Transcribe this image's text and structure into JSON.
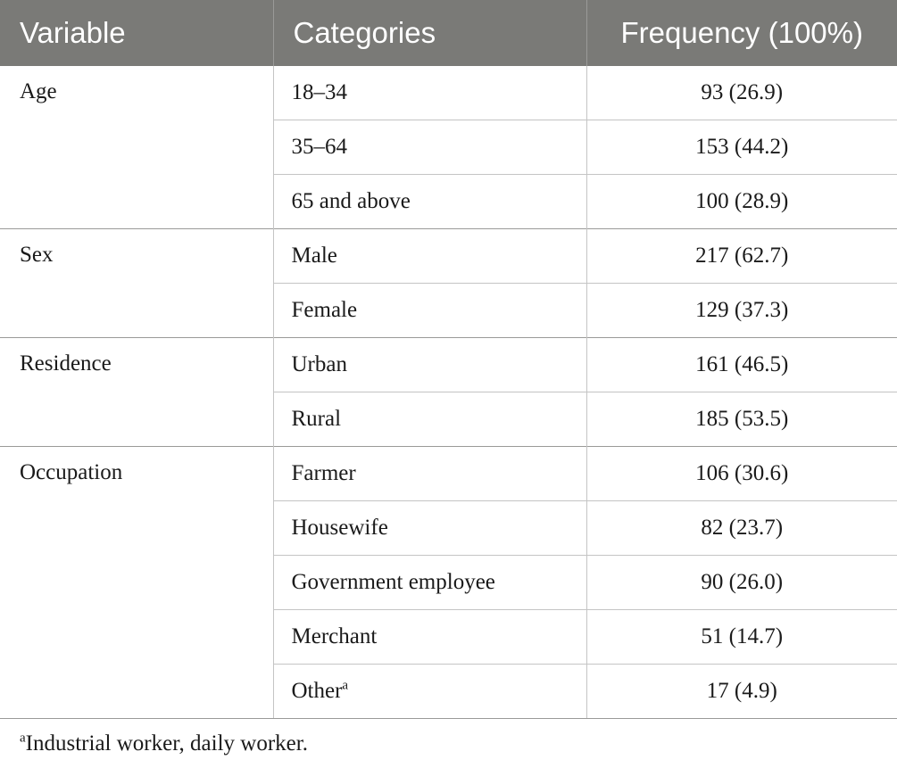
{
  "table": {
    "headers": {
      "variable": "Variable",
      "categories": "Categories",
      "frequency": "Frequency (100%)"
    },
    "groups": [
      {
        "variable": "Age",
        "rows": [
          {
            "category": "18–34",
            "frequency": "93 (26.9)"
          },
          {
            "category": "35–64",
            "frequency": "153 (44.2)"
          },
          {
            "category": "65 and above",
            "frequency": "100 (28.9)"
          }
        ]
      },
      {
        "variable": "Sex",
        "rows": [
          {
            "category": "Male",
            "frequency": "217 (62.7)"
          },
          {
            "category": "Female",
            "frequency": "129 (37.3)"
          }
        ]
      },
      {
        "variable": "Residence",
        "rows": [
          {
            "category": "Urban",
            "frequency": "161 (46.5)"
          },
          {
            "category": "Rural",
            "frequency": "185 (53.5)"
          }
        ]
      },
      {
        "variable": "Occupation",
        "rows": [
          {
            "category": "Farmer",
            "frequency": "106 (30.6)"
          },
          {
            "category": "Housewife",
            "frequency": "82 (23.7)"
          },
          {
            "category": "Government employee",
            "frequency": "90 (26.0)"
          },
          {
            "category": "Merchant",
            "frequency": "51 (14.7)"
          },
          {
            "category": "Other",
            "category_mark": "a",
            "frequency": "17 (4.9)"
          }
        ]
      }
    ]
  },
  "footnote": {
    "mark": "a",
    "text": "Industrial worker, daily worker."
  }
}
